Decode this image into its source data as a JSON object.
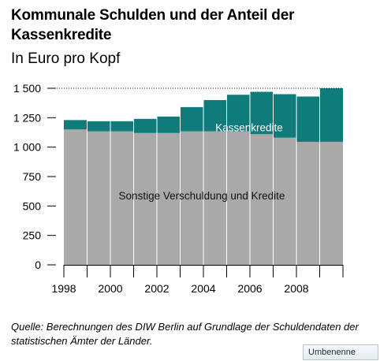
{
  "title": "Kommunale Schulden und der Anteil der Kassenkredite",
  "subtitle": "In Euro pro Kopf",
  "source": "Quelle: Berechnungen des DIW Berlin auf Grundlage der Schuldendaten der statistischen Ämter der Länder.",
  "rename_button": "Umbenenne",
  "colors": {
    "base": "#a9a9a9",
    "cash_credit": "#0f7b7b",
    "label_on_teal": "#ffffff",
    "label_on_gray": "#111111"
  },
  "chart_data": {
    "type": "bar",
    "stacked": true,
    "categories": [
      "1998",
      "1999",
      "2000",
      "2001",
      "2002",
      "2003",
      "2004",
      "2005",
      "2006",
      "2007",
      "2008",
      "2009"
    ],
    "x_tick_labels": [
      "1998",
      "2000",
      "2002",
      "2004",
      "2006",
      "2008"
    ],
    "y_ticks": [
      0,
      250,
      500,
      750,
      1000,
      1250,
      1500
    ],
    "y_tick_labels": [
      "0",
      "250",
      "500",
      "750",
      "1 000",
      "1 250",
      "1 500"
    ],
    "ylim": [
      0,
      1500
    ],
    "grid": false,
    "reference_line": 1500,
    "series": [
      {
        "name": "Sonstige Verschuldung und Kredite",
        "values": [
          1150,
          1135,
          1135,
          1120,
          1120,
          1135,
          1135,
          1135,
          1110,
          1080,
          1045,
          1045
        ]
      },
      {
        "name": "Kassenkredite",
        "values": [
          80,
          85,
          85,
          120,
          140,
          205,
          265,
          310,
          360,
          370,
          385,
          455
        ]
      }
    ]
  }
}
